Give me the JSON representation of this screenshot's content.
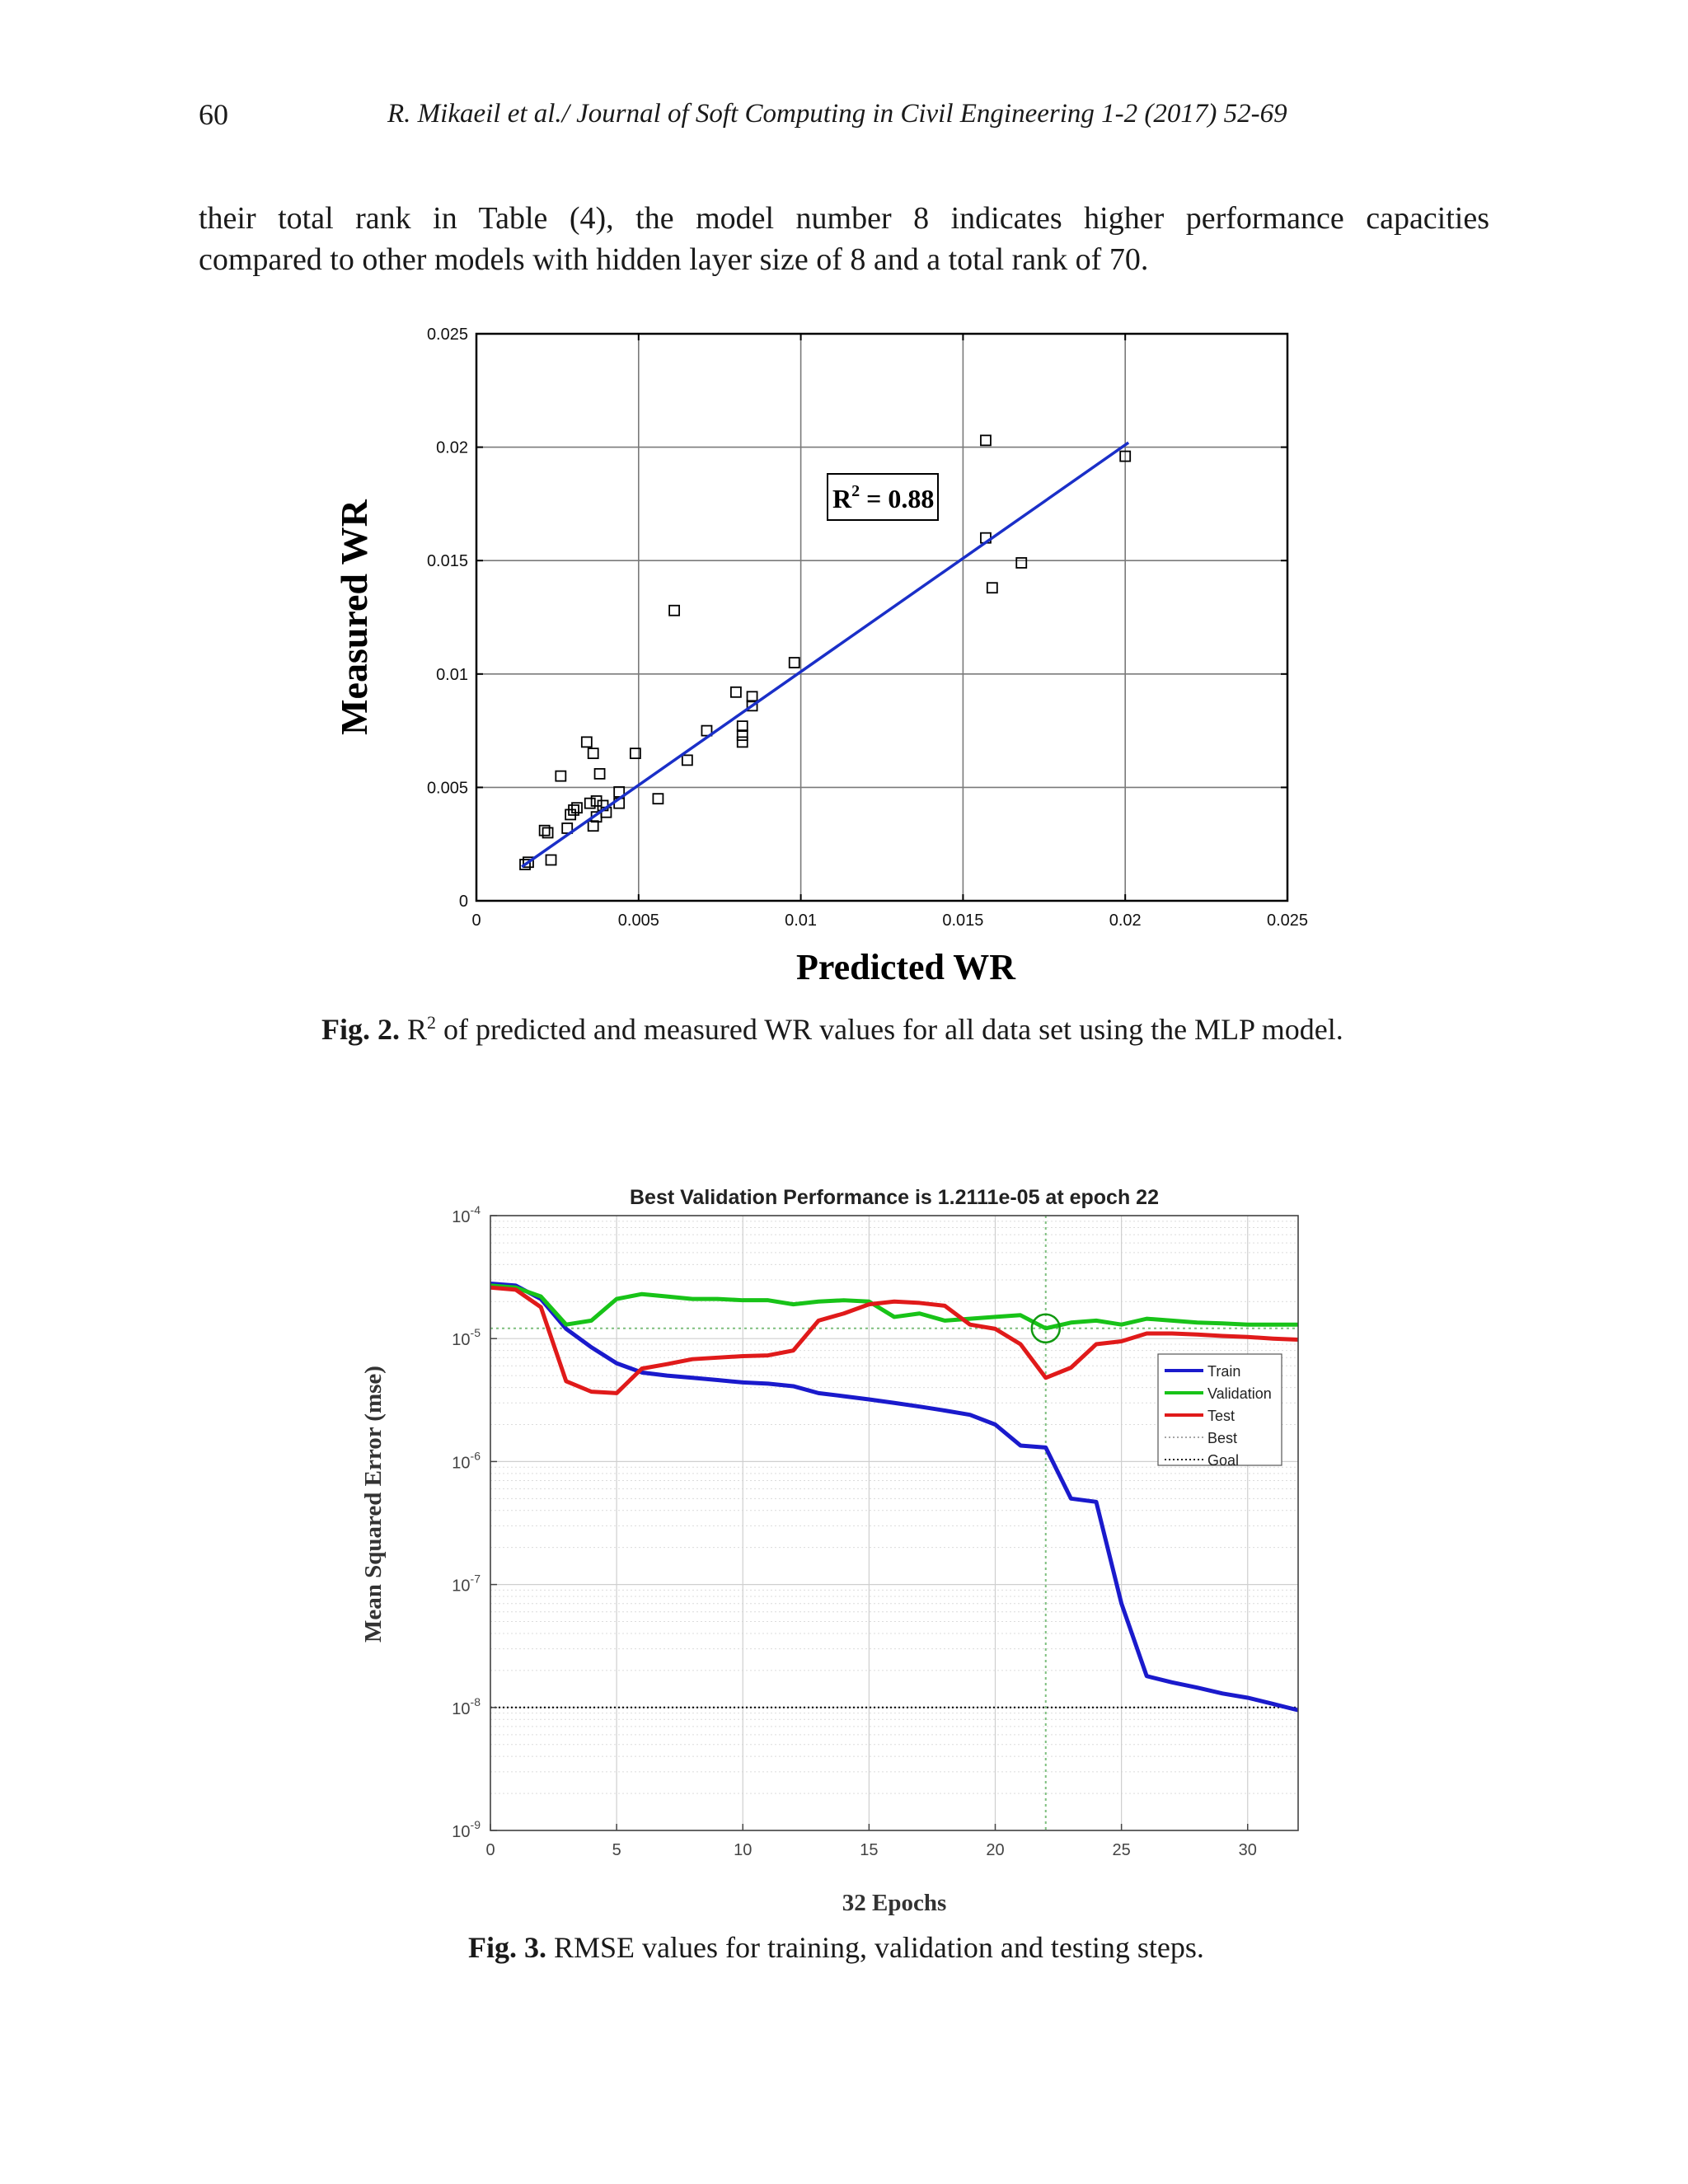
{
  "header": {
    "page_number": "60",
    "running_title": "R. Mikaeil et al./ Journal of Soft Computing in Civil Engineering 1-2 (2017) 52-69"
  },
  "body": {
    "line1": "their total rank in Table (4), the model number 8 indicates higher performance capacities",
    "line2": "compared to other models with hidden layer size of 8 and a total rank of 70."
  },
  "fig2": {
    "caption_label": "Fig. 2.",
    "caption_r": "R",
    "caption_sup": "2",
    "caption_text": " of predicted and measured WR values for all data set using the MLP model.",
    "annotation_r": "R",
    "annotation_sup": "2",
    "annotation_text": " = 0.88"
  },
  "fig3": {
    "caption_label": "Fig. 3.",
    "caption_text": " RMSE values for training, validation and testing steps."
  },
  "chart_data": [
    {
      "type": "scatter",
      "xlabel": "Predicted WR",
      "ylabel": "Measured WR",
      "xlim": [
        0,
        0.025
      ],
      "ylim": [
        0,
        0.025
      ],
      "xticks": [
        "0",
        "0.005",
        "0.01",
        "0.015",
        "0.02",
        "0.025"
      ],
      "yticks": [
        "0",
        "0.005",
        "0.01",
        "0.015",
        "0.02",
        "0.025"
      ],
      "grid": true,
      "colors": {
        "fit": "#1a2fc8",
        "points": "#000000"
      },
      "points": [
        [
          0.0015,
          0.0016
        ],
        [
          0.0016,
          0.0017
        ],
        [
          0.0021,
          0.0031
        ],
        [
          0.0022,
          0.003
        ],
        [
          0.0023,
          0.0018
        ],
        [
          0.0026,
          0.0055
        ],
        [
          0.0028,
          0.0032
        ],
        [
          0.0029,
          0.0038
        ],
        [
          0.003,
          0.004
        ],
        [
          0.0031,
          0.0041
        ],
        [
          0.0034,
          0.007
        ],
        [
          0.0035,
          0.0043
        ],
        [
          0.0036,
          0.0065
        ],
        [
          0.0036,
          0.0033
        ],
        [
          0.0037,
          0.0044
        ],
        [
          0.0037,
          0.0037
        ],
        [
          0.0038,
          0.0056
        ],
        [
          0.0039,
          0.0042
        ],
        [
          0.004,
          0.0039
        ],
        [
          0.0044,
          0.0043
        ],
        [
          0.0044,
          0.0048
        ],
        [
          0.0049,
          0.0065
        ],
        [
          0.0056,
          0.0045
        ],
        [
          0.0061,
          0.0128
        ],
        [
          0.0065,
          0.0062
        ],
        [
          0.0071,
          0.0075
        ],
        [
          0.008,
          0.0092
        ],
        [
          0.0082,
          0.007
        ],
        [
          0.0082,
          0.0073
        ],
        [
          0.0082,
          0.0077
        ],
        [
          0.0085,
          0.009
        ],
        [
          0.0085,
          0.0086
        ],
        [
          0.0098,
          0.0105
        ],
        [
          0.0157,
          0.016
        ],
        [
          0.0157,
          0.0203
        ],
        [
          0.0159,
          0.0138
        ],
        [
          0.0168,
          0.0149
        ],
        [
          0.02,
          0.0196
        ]
      ],
      "fit_line": [
        [
          0.0014,
          0.0015
        ],
        [
          0.0201,
          0.0202
        ]
      ]
    },
    {
      "type": "line",
      "title": "Best Validation Performance is 1.2111e-05 at epoch 22",
      "xlabel": "32 Epochs",
      "ylabel": "Mean Squared Error  (mse)",
      "xlim": [
        0,
        32
      ],
      "ylim_log10": [
        -9,
        -4
      ],
      "y_scale": "log",
      "xticks": [
        "0",
        "5",
        "10",
        "15",
        "20",
        "25",
        "30"
      ],
      "ytick_base": "10",
      "ytick_exponents": [
        "-4",
        "-5",
        "-6",
        "-7",
        "-8",
        "-9"
      ],
      "grid": true,
      "legend_position": "right",
      "best_epoch": 22,
      "best_value": 1.2111e-05,
      "goal": 1e-08,
      "x": [
        0,
        1,
        2,
        3,
        4,
        5,
        6,
        7,
        8,
        9,
        10,
        11,
        12,
        13,
        14,
        15,
        16,
        17,
        18,
        19,
        20,
        21,
        22,
        23,
        24,
        25,
        26,
        27,
        28,
        29,
        30,
        31,
        32
      ],
      "series": [
        {
          "name": "Train",
          "color": "#1a1acc",
          "values": [
            2.8e-05,
            2.7e-05,
            2.1e-05,
            1.2e-05,
            8.5e-06,
            6.3e-06,
            5.3e-06,
            5e-06,
            4.8e-06,
            4.6e-06,
            4.4e-06,
            4.3e-06,
            4.1e-06,
            3.6e-06,
            3.4e-06,
            3.2e-06,
            3e-06,
            2.8e-06,
            2.6e-06,
            2.4e-06,
            2e-06,
            1.35e-06,
            1.3e-06,
            5e-07,
            4.7e-07,
            7e-08,
            1.8e-08,
            1.6e-08,
            1.45e-08,
            1.3e-08,
            1.2e-08,
            1.07e-08,
            9.5e-09
          ]
        },
        {
          "name": "Validation",
          "color": "#18c318",
          "values": [
            2.7e-05,
            2.6e-05,
            2.2e-05,
            1.3e-05,
            1.4e-05,
            2.1e-05,
            2.3e-05,
            2.2e-05,
            2.1e-05,
            2.1e-05,
            2.05e-05,
            2.05e-05,
            1.9e-05,
            2e-05,
            2.05e-05,
            2e-05,
            1.5e-05,
            1.6e-05,
            1.4e-05,
            1.45e-05,
            1.5e-05,
            1.55e-05,
            1.2111e-05,
            1.35e-05,
            1.4e-05,
            1.3e-05,
            1.45e-05,
            1.4e-05,
            1.35e-05,
            1.33e-05,
            1.3e-05,
            1.3e-05,
            1.3e-05
          ]
        },
        {
          "name": "Test",
          "color": "#e01a1a",
          "values": [
            2.6e-05,
            2.5e-05,
            1.8e-05,
            4.5e-06,
            3.7e-06,
            3.6e-06,
            5.7e-06,
            6.2e-06,
            6.8e-06,
            7e-06,
            7.2e-06,
            7.3e-06,
            8e-06,
            1.4e-05,
            1.6e-05,
            1.9e-05,
            2e-05,
            1.95e-05,
            1.85e-05,
            1.3e-05,
            1.2e-05,
            9e-06,
            4.8e-06,
            5.8e-06,
            9e-06,
            9.5e-06,
            1.1e-05,
            1.1e-05,
            1.08e-05,
            1.05e-05,
            1.03e-05,
            1e-05,
            9.8e-06
          ]
        },
        {
          "name": "Best",
          "color": "#9a9a9a",
          "style": "dotted"
        },
        {
          "name": "Goal",
          "color": "#000000",
          "style": "dotted"
        }
      ]
    }
  ]
}
